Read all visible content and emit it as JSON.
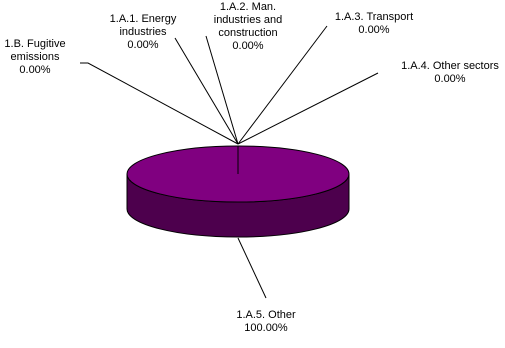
{
  "chart_data": {
    "type": "pie",
    "style": "3d",
    "legend": "none",
    "colors": {
      "slice_top": "#800080",
      "slice_side": "#4d004d",
      "outline": "#000000",
      "leader_line": "#000000"
    },
    "slices": [
      {
        "label_lines": [
          "1.B. Fugitive",
          "emissions"
        ],
        "value": 0.0,
        "value_label": "0.00%"
      },
      {
        "label_lines": [
          "1.A.1. Energy",
          "industries"
        ],
        "value": 0.0,
        "value_label": "0.00%"
      },
      {
        "label_lines": [
          "1.A.2. Man.",
          "industries and",
          "construction"
        ],
        "value": 0.0,
        "value_label": "0.00%"
      },
      {
        "label_lines": [
          "1.A.3. Transport"
        ],
        "value": 0.0,
        "value_label": "0.00%"
      },
      {
        "label_lines": [
          "1.A.4. Other sectors"
        ],
        "value": 0.0,
        "value_label": "0.00%"
      },
      {
        "label_lines": [
          "1.A.5. Other"
        ],
        "value": 100.0,
        "value_label": "100.00%"
      }
    ]
  }
}
